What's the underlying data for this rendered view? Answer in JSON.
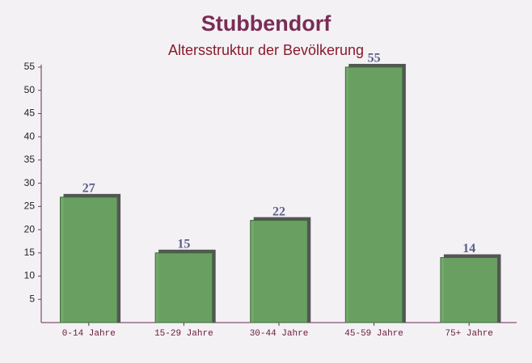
{
  "chart_data": {
    "type": "bar",
    "title": "Stubbendorf",
    "subtitle": "Altersstruktur der Bevölkerung",
    "categories": [
      "0-14 Jahre",
      "15-29 Jahre",
      "30-44 Jahre",
      "45-59 Jahre",
      "75+ Jahre"
    ],
    "values": [
      27,
      15,
      22,
      55,
      14
    ],
    "color": "#6aa463",
    "ylim": [
      0,
      55
    ],
    "yticks": [
      5,
      10,
      15,
      20,
      25,
      30,
      35,
      40,
      45,
      50,
      55
    ]
  }
}
